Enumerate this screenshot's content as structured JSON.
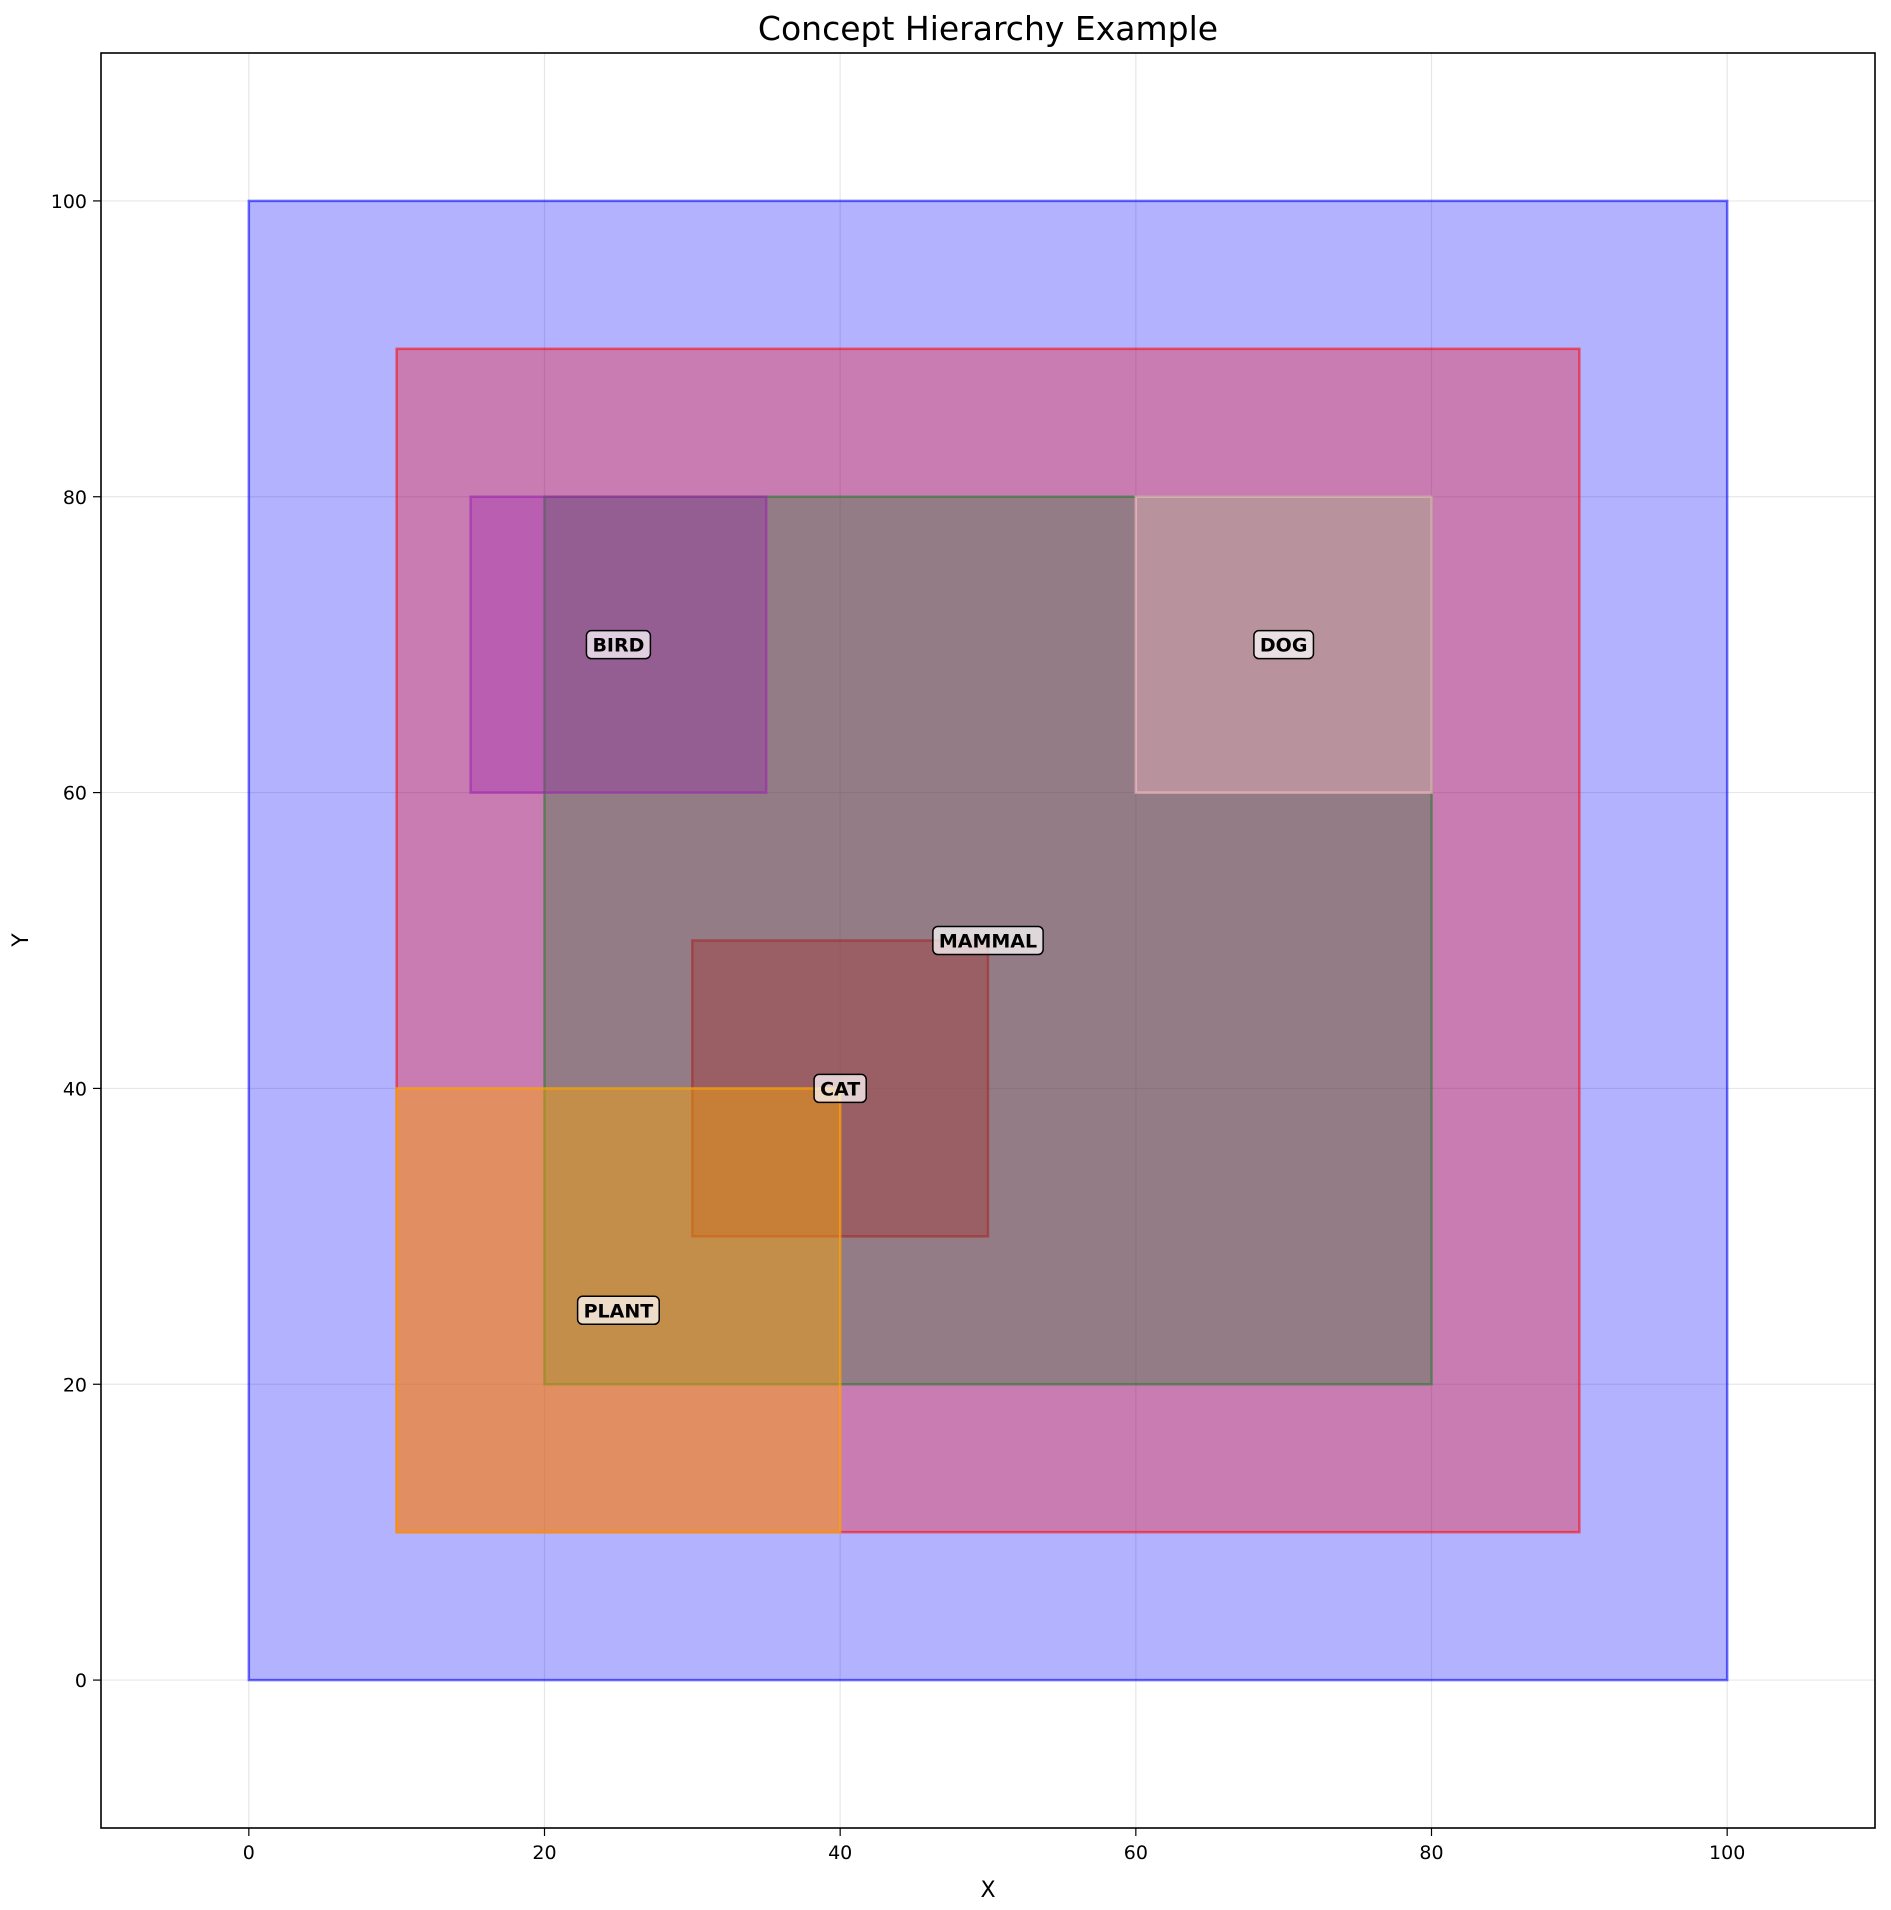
{
  "chart_data": {
    "type": "area",
    "title": "Concept Hierarchy Example",
    "xlabel": "X",
    "ylabel": "Y",
    "xlim": [
      -10,
      110
    ],
    "ylim": [
      -10,
      110
    ],
    "xticks": [
      0,
      20,
      40,
      60,
      80,
      100
    ],
    "yticks": [
      0,
      20,
      40,
      60,
      80,
      100
    ],
    "grid": true,
    "regions": [
      {
        "name": "",
        "x": [
          0,
          100
        ],
        "y": [
          0,
          100
        ],
        "color": "#0000ff",
        "opacity": 0.3,
        "label": ""
      },
      {
        "name": "",
        "x": [
          10,
          90
        ],
        "y": [
          10,
          90
        ],
        "color": "#ff0000",
        "opacity": 0.3,
        "label": ""
      },
      {
        "name": "MAMMAL",
        "x": [
          20,
          80
        ],
        "y": [
          20,
          80
        ],
        "color": "#2e7d32",
        "opacity": 0.35,
        "label": "MAMMAL",
        "label_pos": [
          50,
          50
        ]
      },
      {
        "name": "BIRD",
        "x": [
          15,
          35
        ],
        "y": [
          60,
          80
        ],
        "color": "#9c27b0",
        "opacity": 0.35,
        "label": "BIRD",
        "label_pos": [
          25,
          70
        ]
      },
      {
        "name": "DOG",
        "x": [
          60,
          80
        ],
        "y": [
          60,
          80
        ],
        "color": "#ffc0cb",
        "opacity": 0.35,
        "label": "DOG",
        "label_pos": [
          70,
          70
        ]
      },
      {
        "name": "CAT",
        "x": [
          30,
          50
        ],
        "y": [
          30,
          50
        ],
        "color": "#a52a2a",
        "opacity": 0.35,
        "label": "CAT",
        "label_pos": [
          40,
          40
        ]
      },
      {
        "name": "PLANT",
        "x": [
          10,
          40
        ],
        "y": [
          10,
          40
        ],
        "color": "#ffa500",
        "opacity": 0.45,
        "label": "PLANT",
        "label_pos": [
          25,
          25
        ]
      }
    ]
  }
}
